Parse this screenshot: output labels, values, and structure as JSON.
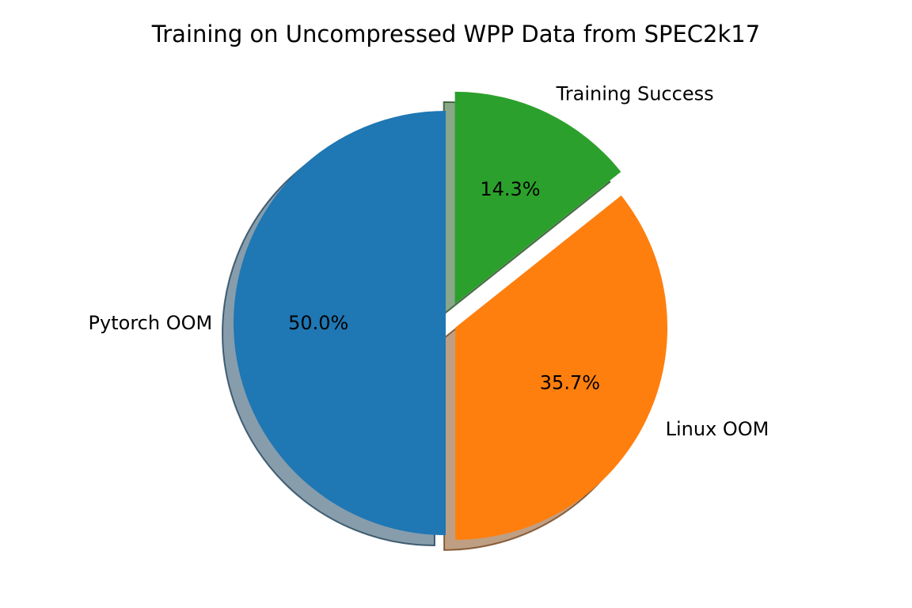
{
  "chart_data": {
    "type": "pie",
    "title": "Training on Uncompressed WPP Data from SPEC2k17",
    "start_angle_deg": 90,
    "direction": "counterclockwise",
    "shadow": true,
    "slices": [
      {
        "label": "Pytorch OOM",
        "value": 50.0,
        "pct_label": "50.0%",
        "color": "#1f77b4",
        "explode": 0.0
      },
      {
        "label": "Linux OOM",
        "value": 35.7,
        "pct_label": "35.7%",
        "color": "#ff7f0e",
        "explode": 0.05
      },
      {
        "label": "Training Success",
        "value": 14.3,
        "pct_label": "14.3%",
        "color": "#2ca02c",
        "explode": 0.1
      }
    ]
  }
}
